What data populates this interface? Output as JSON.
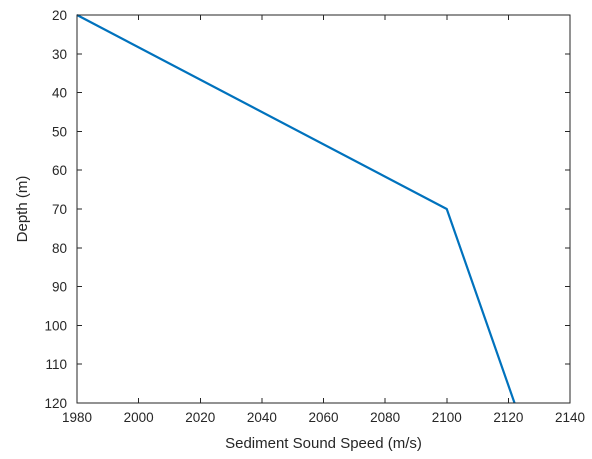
{
  "chart_data": {
    "type": "line",
    "title": "",
    "xlabel": "Sediment Sound Speed (m/s)",
    "ylabel": "Depth (m)",
    "xlim": [
      1980,
      2140
    ],
    "ylim": [
      20,
      120
    ],
    "y_reversed": true,
    "grid": false,
    "xticks": [
      1980,
      2000,
      2020,
      2040,
      2060,
      2080,
      2100,
      2120,
      2140
    ],
    "yticks": [
      20,
      30,
      40,
      50,
      60,
      70,
      80,
      90,
      100,
      110,
      120
    ],
    "series": [
      {
        "color": "#0072BD",
        "x": [
          1980,
          2100,
          2122
        ],
        "y": [
          20,
          70,
          120
        ]
      }
    ]
  }
}
